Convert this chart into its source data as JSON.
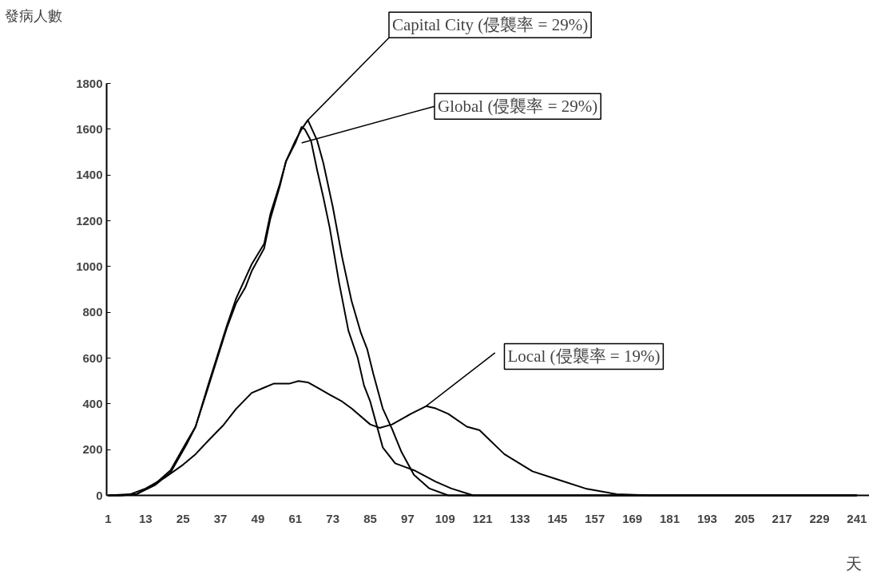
{
  "chart_data": {
    "type": "line",
    "ylabel": "發病人數",
    "xlabel": "天",
    "xlim": [
      0.5,
      245
    ],
    "xticks": [
      1,
      13,
      25,
      37,
      49,
      61,
      73,
      85,
      97,
      109,
      121,
      133,
      145,
      157,
      169,
      181,
      193,
      205,
      217,
      229,
      241
    ],
    "ylim": [
      0,
      1800
    ],
    "yticks": [
      0,
      200,
      400,
      600,
      800,
      1000,
      1200,
      1400,
      1600,
      1800
    ],
    "series": [
      {
        "name": "Capital City (侵襲率 = 29%)",
        "color": "#000000",
        "x": [
          1,
          5,
          10,
          16,
          21,
          26,
          29,
          33,
          36,
          39,
          42,
          45,
          47,
          51,
          53,
          56,
          58,
          61,
          63,
          65,
          68,
          70,
          73,
          76,
          79,
          82,
          84,
          86,
          89,
          92,
          95,
          99,
          104,
          110,
          241
        ],
        "values": [
          0,
          0,
          5,
          50,
          110,
          230,
          300,
          470,
          600,
          730,
          840,
          910,
          980,
          1080,
          1210,
          1350,
          1460,
          1550,
          1600,
          1640,
          1550,
          1450,
          1260,
          1040,
          850,
          710,
          640,
          530,
          380,
          290,
          190,
          90,
          30,
          0,
          0
        ]
      },
      {
        "name": "Global (侵襲率 = 29%)",
        "color": "#000000",
        "x": [
          1,
          5,
          10,
          16,
          21,
          26,
          29,
          33,
          36,
          39,
          42,
          45,
          47,
          51,
          53,
          56,
          58,
          61,
          63,
          64,
          66,
          68,
          70,
          72,
          75,
          78,
          81,
          83,
          85,
          87,
          89,
          93,
          99,
          106,
          111,
          118,
          241
        ],
        "values": [
          0,
          0,
          5,
          45,
          100,
          220,
          300,
          480,
          610,
          740,
          860,
          950,
          1010,
          1100,
          1230,
          1360,
          1460,
          1540,
          1610,
          1600,
          1550,
          1420,
          1300,
          1170,
          930,
          720,
          600,
          480,
          410,
          310,
          210,
          140,
          110,
          60,
          30,
          0,
          0
        ]
      },
      {
        "name": "Local (侵襲率 = 19%)",
        "color": "#000000",
        "x": [
          1,
          8,
          13,
          19,
          25,
          29,
          33,
          38,
          42,
          47,
          51,
          54,
          59,
          62,
          65,
          68,
          72,
          76,
          79,
          85,
          88,
          92,
          98,
          103,
          106,
          110,
          116,
          120,
          128,
          137,
          145,
          154,
          164,
          175,
          241
        ],
        "values": [
          0,
          5,
          30,
          76,
          134,
          180,
          238,
          308,
          378,
          448,
          471,
          488,
          488,
          500,
          494,
          471,
          440,
          410,
          380,
          310,
          295,
          310,
          356,
          390,
          380,
          356,
          300,
          285,
          180,
          105,
          70,
          30,
          5,
          0,
          0
        ]
      }
    ]
  }
}
